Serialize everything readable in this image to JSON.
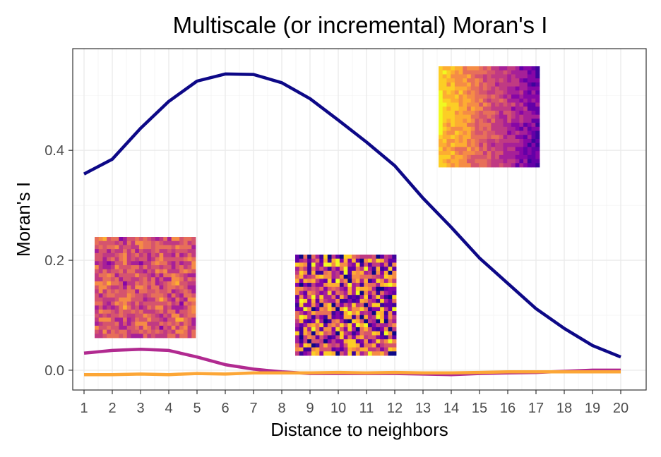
{
  "chart_data": {
    "type": "line",
    "title": "Multiscale (or incremental) Moran's I",
    "xlabel": "Distance to neighbors",
    "ylabel": "Moran's I",
    "x": [
      1,
      2,
      3,
      4,
      5,
      6,
      7,
      8,
      9,
      10,
      11,
      12,
      13,
      14,
      15,
      16,
      17,
      18,
      19,
      20
    ],
    "x_tick_labels": [
      "1",
      "2",
      "3",
      "4",
      "5",
      "6",
      "7",
      "8",
      "9",
      "10",
      "11",
      "12",
      "13",
      "14",
      "15",
      "16",
      "17",
      "18",
      "19",
      "20"
    ],
    "y_ticks": [
      0.0,
      0.2,
      0.4
    ],
    "y_tick_labels": [
      "0.0",
      "0.2",
      "0.4"
    ],
    "xlim": [
      0.6,
      20.9
    ],
    "ylim": [
      -0.036,
      0.585
    ],
    "grid": true,
    "legend": "none",
    "series": [
      {
        "color": "#0d0887",
        "values": [
          0.357,
          0.384,
          0.44,
          0.489,
          0.526,
          0.539,
          0.538,
          0.523,
          0.494,
          0.455,
          0.415,
          0.372,
          0.313,
          0.26,
          0.204,
          0.158,
          0.112,
          0.076,
          0.045,
          0.024
        ]
      },
      {
        "color": "#b12a90",
        "values": [
          0.031,
          0.036,
          0.038,
          0.036,
          0.024,
          0.01,
          0.002,
          -0.003,
          -0.006,
          -0.006,
          -0.006,
          -0.006,
          -0.007,
          -0.008,
          -0.006,
          -0.005,
          -0.004,
          -0.002,
          0.0,
          0.0
        ]
      },
      {
        "color": "#fca636",
        "values": [
          -0.008,
          -0.008,
          -0.007,
          -0.008,
          -0.006,
          -0.007,
          -0.005,
          -0.005,
          -0.005,
          -0.004,
          -0.005,
          -0.004,
          -0.005,
          -0.005,
          -0.004,
          -0.003,
          -0.003,
          -0.003,
          -0.003,
          -0.003
        ]
      }
    ],
    "insets": [
      {
        "pattern": "smooth-gradient",
        "palette": "plasma"
      },
      {
        "pattern": "moderate-clustering",
        "palette": "plasma"
      },
      {
        "pattern": "random-noise",
        "palette": "plasma"
      }
    ]
  }
}
